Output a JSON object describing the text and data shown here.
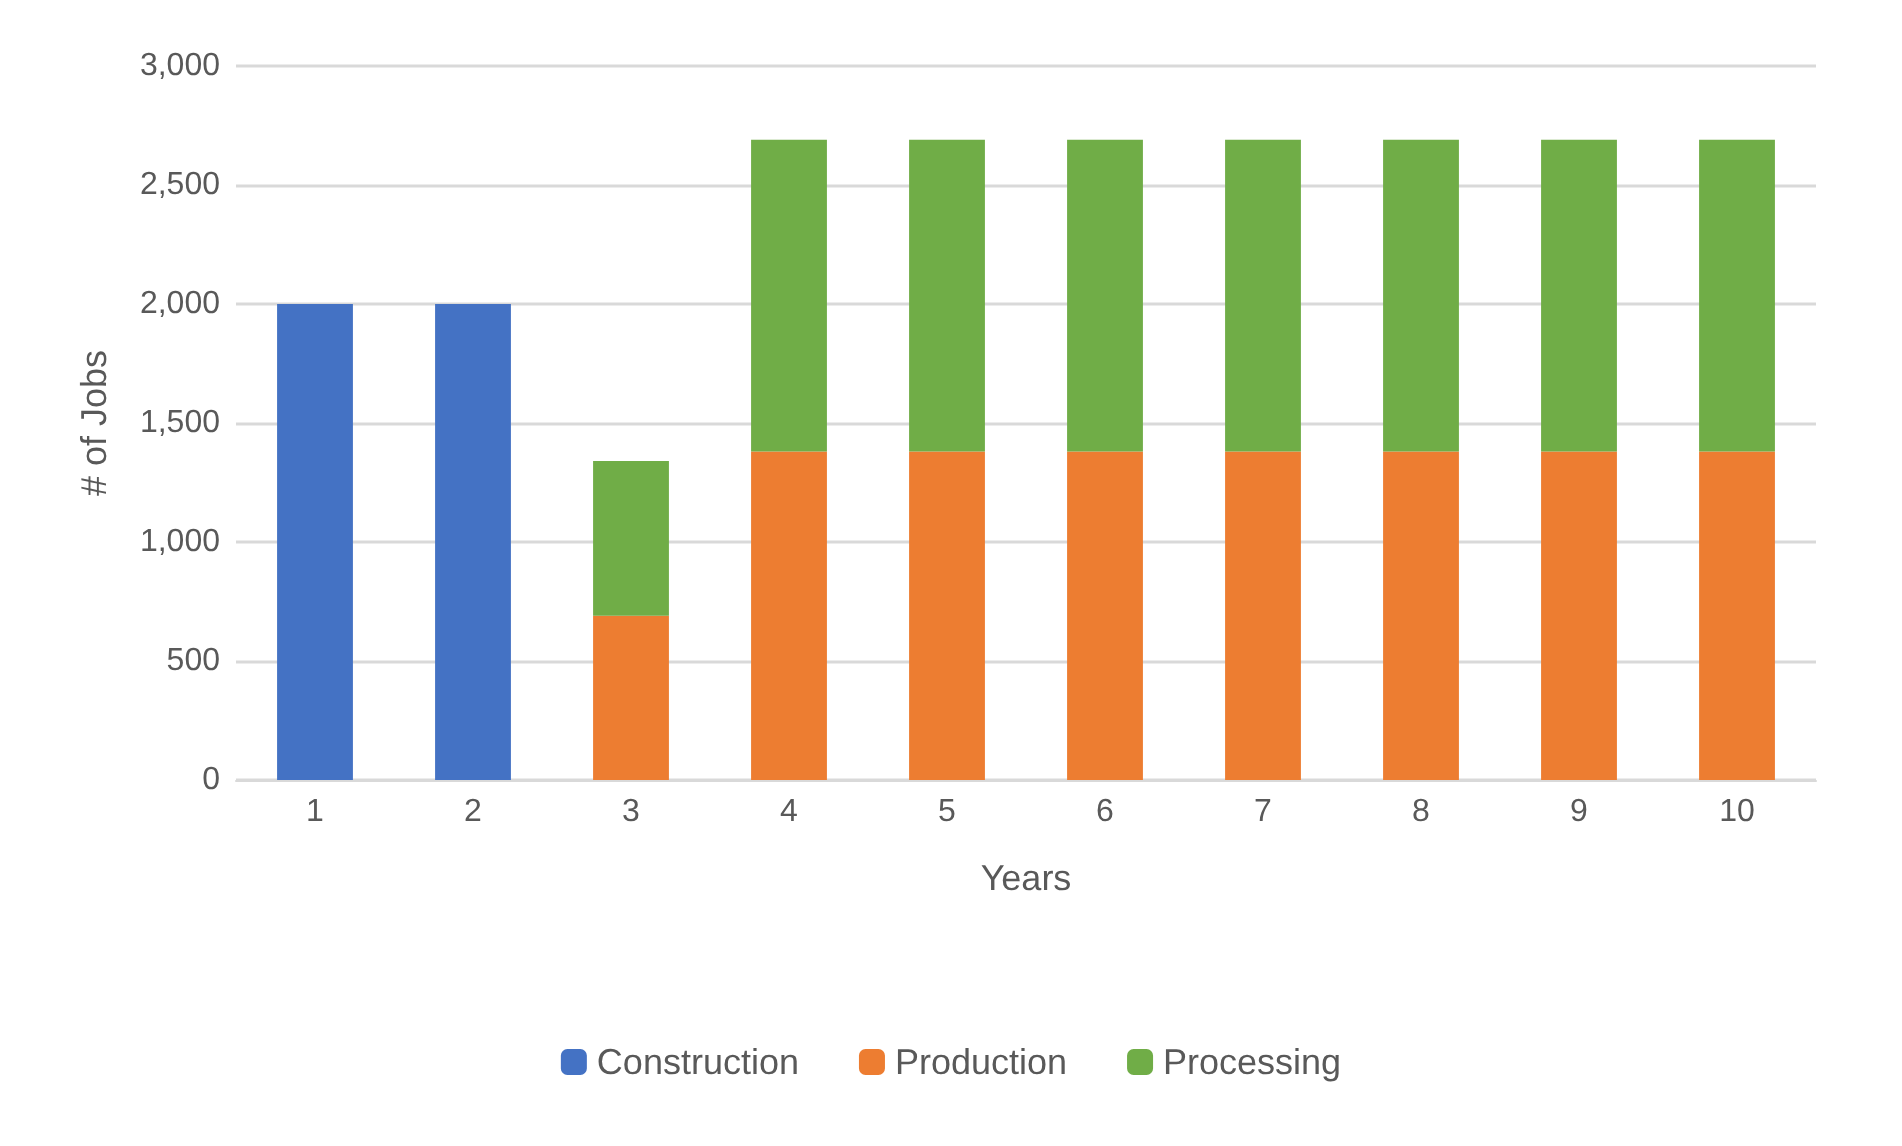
{
  "chart_data": {
    "type": "bar",
    "stacked": true,
    "xlabel": "Years",
    "ylabel": "# of Jobs",
    "categories": [
      "1",
      "2",
      "3",
      "4",
      "5",
      "6",
      "7",
      "8",
      "9",
      "10"
    ],
    "series": [
      {
        "name": "Construction",
        "color": "#4472c4",
        "values": [
          2000,
          2000,
          null,
          null,
          null,
          null,
          null,
          null,
          null,
          null
        ]
      },
      {
        "name": "Production",
        "color": "#ed7d31",
        "values": [
          null,
          null,
          690,
          1380,
          1380,
          1380,
          1380,
          1380,
          1380,
          1380
        ]
      },
      {
        "name": "Processing",
        "color": "#70ad47",
        "values": [
          null,
          null,
          650,
          1310,
          1310,
          1310,
          1310,
          1310,
          1310,
          1310
        ]
      }
    ],
    "ylim": [
      0,
      3000
    ],
    "yticks": [
      0,
      500,
      {
        "value": 1000,
        "label": "1,000"
      },
      {
        "value": 1500,
        "label": "1,500"
      },
      {
        "value": 2000,
        "label": "2,000"
      },
      {
        "value": 2500,
        "label": "2,500"
      },
      {
        "value": 3000,
        "label": "3,000"
      }
    ],
    "grid": "y",
    "legend": "bottom"
  }
}
